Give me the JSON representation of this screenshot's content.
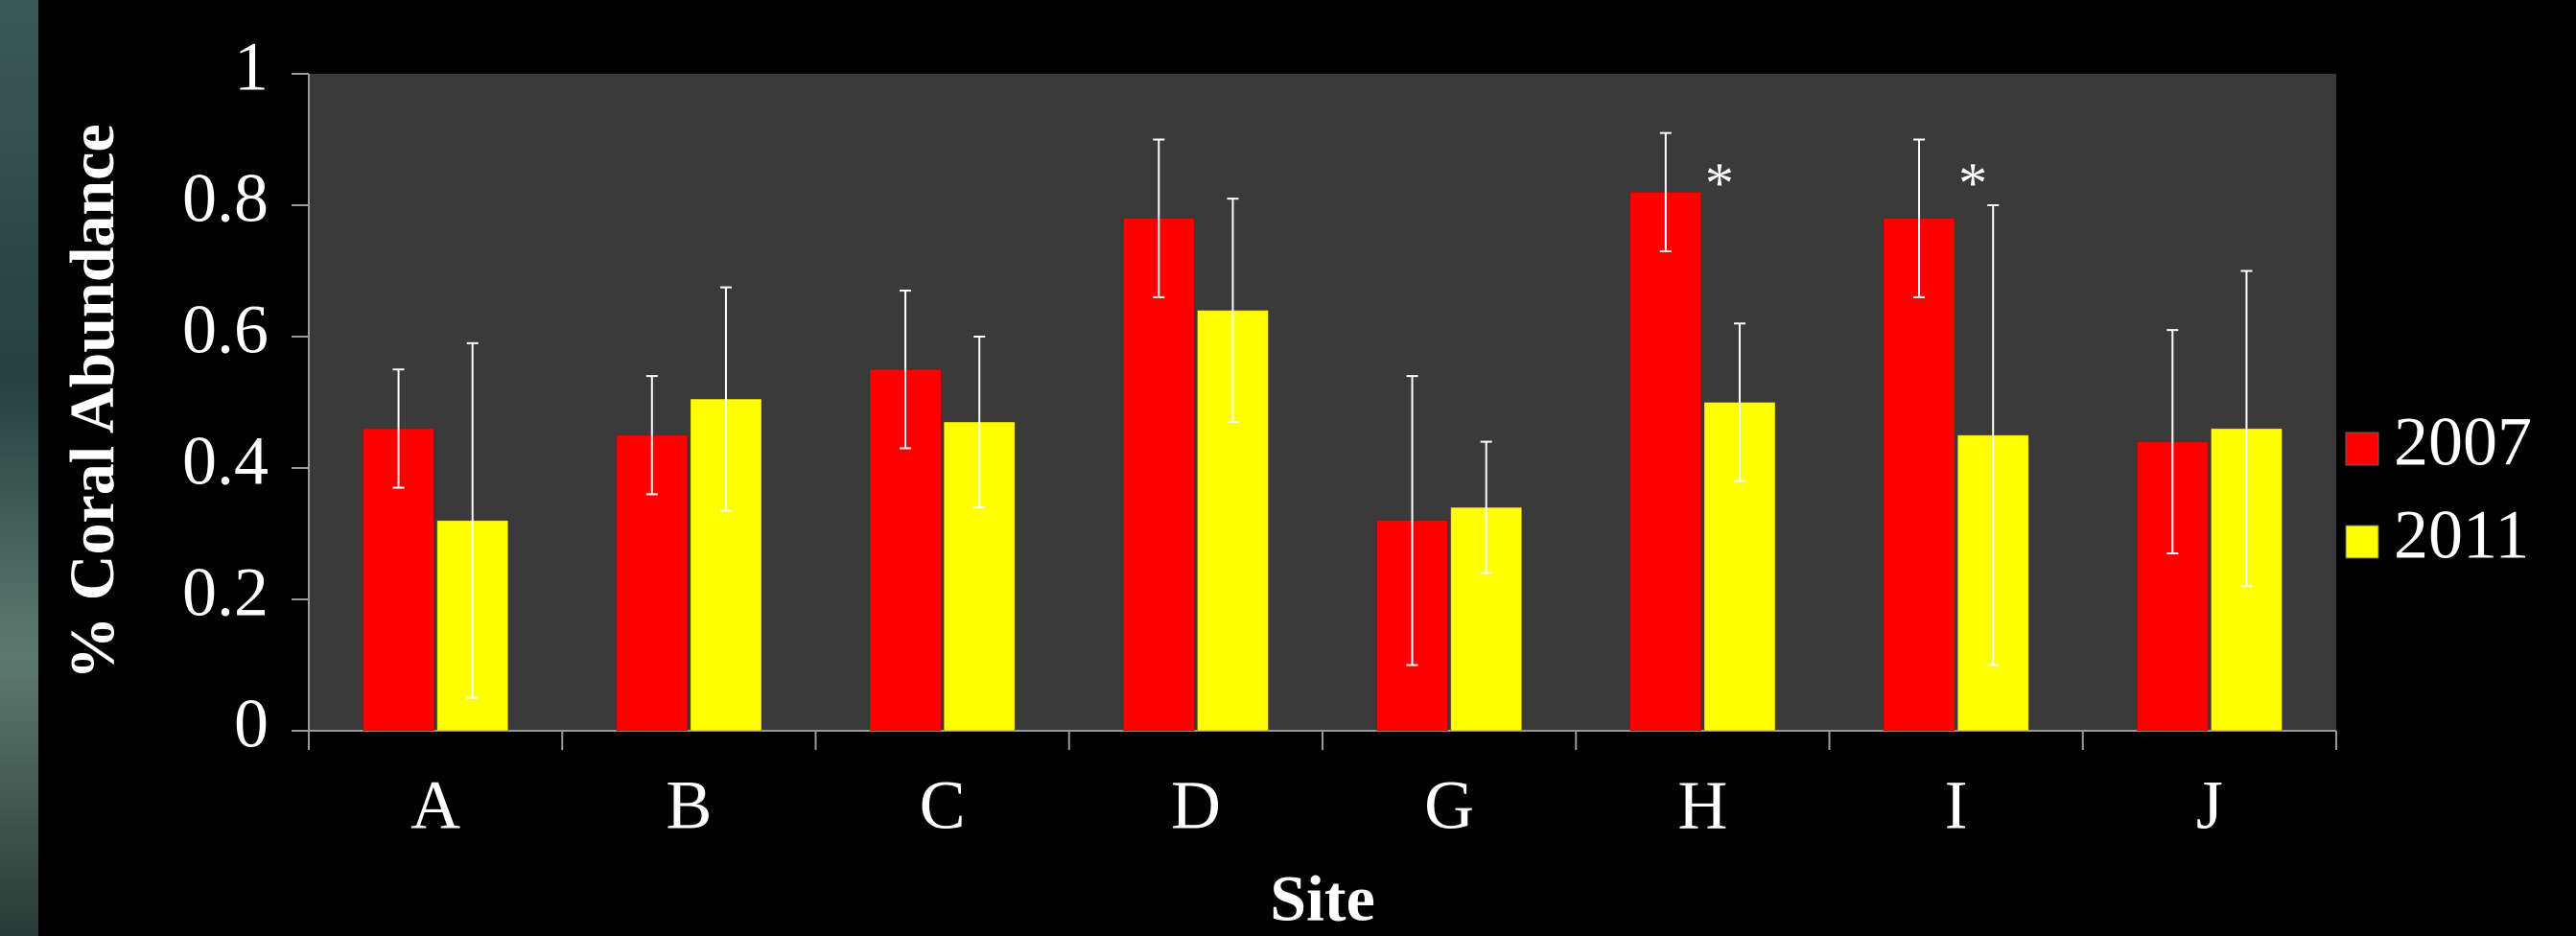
{
  "chart_data": {
    "type": "bar",
    "x_label": "Site",
    "y_label": "% Coral Abundance",
    "categories": [
      "A",
      "B",
      "C",
      "D",
      "G",
      "H",
      "I",
      "J"
    ],
    "series": [
      {
        "name": "2007",
        "color": "#ff0000",
        "values": [
          0.46,
          0.45,
          0.55,
          0.78,
          0.32,
          0.82,
          0.78,
          0.44
        ],
        "errors": [
          0.09,
          0.09,
          0.12,
          0.12,
          0.22,
          0.09,
          0.12,
          0.17
        ]
      },
      {
        "name": "2011",
        "color": "#ffff00",
        "values": [
          0.32,
          0.505,
          0.47,
          0.64,
          0.34,
          0.5,
          0.45,
          0.46
        ],
        "errors": [
          0.27,
          0.17,
          0.13,
          0.17,
          0.1,
          0.12,
          0.35,
          0.24
        ]
      }
    ],
    "annotations": [
      {
        "text": "*",
        "category": "H",
        "series": "2011"
      },
      {
        "text": "*",
        "category": "I",
        "series": "2011"
      }
    ],
    "ylim": [
      0,
      1
    ],
    "yticks": [
      0,
      0.2,
      0.4,
      0.6,
      0.8,
      1
    ],
    "plot_background": "#3a3a3a",
    "legend": "right"
  }
}
